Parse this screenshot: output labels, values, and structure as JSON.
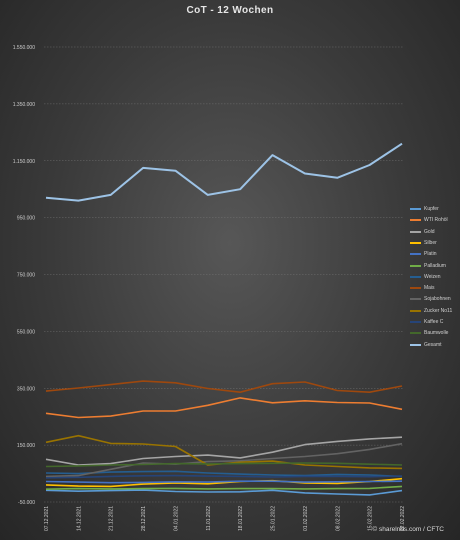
{
  "chart_data": {
    "type": "line",
    "title": "CoT - 12 Wochen",
    "xlabel": "",
    "ylabel": "",
    "ylim": [
      -50000,
      1550000
    ],
    "yticks": [
      -50000,
      150000,
      350000,
      550000,
      750000,
      950000,
      1150000,
      1350000,
      1550000
    ],
    "ytick_labels": [
      "-50.000",
      "150.000",
      "350.000",
      "550.000",
      "750.000",
      "950.000",
      "1.150.000",
      "1.350.000",
      "1.550.000"
    ],
    "grid": "horizontal",
    "legend_position": "right",
    "categories": [
      "07.12.2021",
      "14.12.2021",
      "21.12.2021",
      "28.12.2021",
      "04.01.2022",
      "11.01.2022",
      "18.01.2022",
      "25.01.2022",
      "01.02.2022",
      "08.02.2022",
      "15.02.2022",
      "22.02.2022"
    ],
    "series": [
      {
        "name": "Kupfer",
        "color": "#5b9bd5",
        "values": [
          -9000,
          -12000,
          -10000,
          -8000,
          -13000,
          -15000,
          -14000,
          -9000,
          -18000,
          -22000,
          -25000,
          -10000
        ]
      },
      {
        "name": "WTI Rohöl",
        "color": "#ed7d31",
        "values": [
          262000,
          247000,
          252000,
          270000,
          270000,
          290000,
          316000,
          299000,
          306000,
          300000,
          298000,
          276000
        ]
      },
      {
        "name": "Gold",
        "color": "#a5a5a5",
        "values": [
          100000,
          80000,
          85000,
          103000,
          110000,
          115000,
          105000,
          125000,
          152000,
          163000,
          172000,
          178000
        ]
      },
      {
        "name": "Silber",
        "color": "#ffc000",
        "values": [
          10000,
          6000,
          5000,
          13000,
          17000,
          14000,
          22000,
          25000,
          17000,
          15000,
          22000,
          32000
        ]
      },
      {
        "name": "Platin",
        "color": "#4472c4",
        "values": [
          22000,
          20000,
          18000,
          19000,
          21000,
          20000,
          23000,
          23000,
          20000,
          21000,
          22000,
          23000
        ]
      },
      {
        "name": "Palladium",
        "color": "#70ad47",
        "values": [
          -5000,
          -3000,
          -4000,
          -3000,
          -2000,
          -4000,
          -3000,
          -3000,
          -4000,
          -3000,
          -2000,
          5000
        ]
      },
      {
        "name": "Weizen",
        "color": "#255e91",
        "values": [
          52000,
          50000,
          55000,
          57000,
          58000,
          52000,
          48000,
          45000,
          43000,
          47000,
          45000,
          40000
        ]
      },
      {
        "name": "Mais",
        "color": "#9e480e",
        "values": [
          340000,
          351000,
          363000,
          375000,
          369000,
          349000,
          336000,
          366000,
          372000,
          342000,
          336000,
          358000
        ]
      },
      {
        "name": "Sojabohnen",
        "color": "#636363",
        "values": [
          40000,
          43000,
          65000,
          87000,
          83000,
          92000,
          95000,
          103000,
          110000,
          120000,
          135000,
          155000
        ]
      },
      {
        "name": "Zucker No11",
        "color": "#997300",
        "values": [
          160000,
          183000,
          156000,
          154000,
          145000,
          80000,
          90000,
          94000,
          80000,
          75000,
          70000,
          68000
        ]
      },
      {
        "name": "Kaffee C",
        "color": "#264478",
        "values": [
          35000,
          37000,
          40000,
          42000,
          43000,
          41000,
          40000,
          38000,
          40000,
          40000,
          39000,
          41000
        ]
      },
      {
        "name": "Baumwolle",
        "color": "#43682b",
        "values": [
          75000,
          77000,
          80000,
          82000,
          85000,
          84000,
          85000,
          86000,
          87000,
          86000,
          83000,
          80000
        ]
      },
      {
        "name": "Gesamt",
        "color": "#9dc3e6",
        "values": [
          1020000,
          1010000,
          1030000,
          1125000,
          1115000,
          1030000,
          1050000,
          1170000,
          1105000,
          1090000,
          1135000,
          1210000
        ]
      }
    ]
  },
  "footer": {
    "credit": "© sharelnbs.com / CFTC"
  }
}
